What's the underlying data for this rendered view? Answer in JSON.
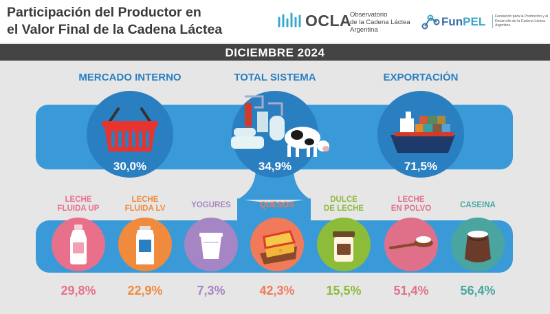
{
  "header": {
    "title_line1": "Participación del Productor en",
    "title_line2": "el Valor Final de la Cadena Láctea",
    "ocla": {
      "name": "OCLA",
      "tagline_line1": "Observatorio",
      "tagline_line2": "de la Cadena Láctea",
      "tagline_line3": "Argentina"
    },
    "funpel": {
      "name_part1": "Fun",
      "name_part2": "PEL",
      "tagline": "Fundación para la Promoción y el Desarrollo de la Cadena Láctea Argentina"
    }
  },
  "period": "DICIEMBRE 2024",
  "summary": [
    {
      "label": "MERCADO INTERNO",
      "value": "30,0%",
      "icon": "shopping-basket-icon"
    },
    {
      "label": "TOTAL SISTEMA",
      "value": "34,9%",
      "icon": "dairy-plant-cow-icon"
    },
    {
      "label": "EXPORTACIÓN",
      "value": "71,5%",
      "icon": "cargo-ship-icon"
    }
  ],
  "products": [
    {
      "label_line1": "LECHE",
      "label_line2": "FLUIDA UP",
      "value": "29,8%",
      "color": "#e8708a",
      "icon": "milk-bottle-icon"
    },
    {
      "label_line1": "LECHE",
      "label_line2": "FLUIDA LV",
      "value": "22,9%",
      "color": "#f08a3c",
      "icon": "milk-carton-icon"
    },
    {
      "label_line1": "YOGURES",
      "label_line2": "",
      "value": "7,3%",
      "color": "#a685c4",
      "icon": "yogurt-cup-icon"
    },
    {
      "label_line1": "QUESOS",
      "label_line2": "",
      "value": "42,3%",
      "color": "#f07a5a",
      "icon": "cheese-icon"
    },
    {
      "label_line1": "DULCE",
      "label_line2": "DE LECHE",
      "value": "15,5%",
      "color": "#8dbb3a",
      "icon": "dulce-jar-icon"
    },
    {
      "label_line1": "LECHE",
      "label_line2": "EN POLVO",
      "value": "51,4%",
      "color": "#e0708a",
      "icon": "powder-spoon-icon"
    },
    {
      "label_line1": "CASEINA",
      "label_line2": "",
      "value": "56,4%",
      "color": "#4aa5a0",
      "icon": "casein-sack-icon"
    }
  ],
  "colors": {
    "band_blue": "#3a9ad8",
    "circle_blue": "#2a7fc0",
    "dark": "#444444"
  }
}
